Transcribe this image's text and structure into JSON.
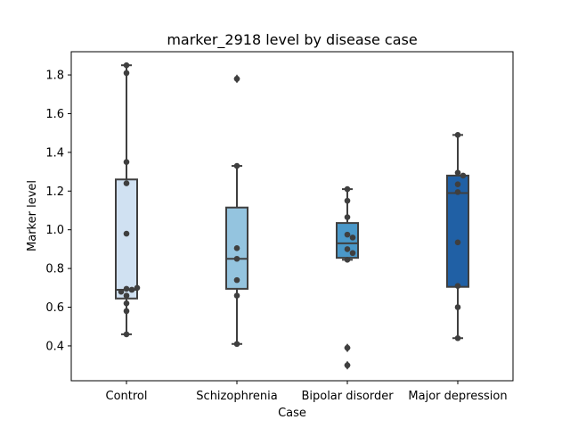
{
  "chart_data": {
    "type": "box",
    "title": "marker_2918 level by disease case",
    "xlabel": "Case",
    "ylabel": "Marker level",
    "categories": [
      "Control",
      "Schizophrenia",
      "Bipolar disorder",
      "Major depression"
    ],
    "ylim": [
      0.22,
      1.92
    ],
    "yticks": [
      "0.4",
      "0.6",
      "0.8",
      "1.0",
      "1.2",
      "1.4",
      "1.6",
      "1.8"
    ],
    "grid": false,
    "box_colors": [
      "#d0e1f2",
      "#94c4df",
      "#4a98c9",
      "#2060a5"
    ],
    "boxes": [
      {
        "category": "Control",
        "q1": 0.645,
        "median": 0.69,
        "q3": 1.26,
        "whisker_low": 0.46,
        "whisker_high": 1.85,
        "outliers": []
      },
      {
        "category": "Schizophrenia",
        "q1": 0.695,
        "median": 0.85,
        "q3": 1.115,
        "whisker_low": 0.41,
        "whisker_high": 1.33,
        "outliers": [
          1.78
        ]
      },
      {
        "category": "Bipolar disorder",
        "q1": 0.855,
        "median": 0.93,
        "q3": 1.035,
        "whisker_low": 0.845,
        "whisker_high": 1.21,
        "outliers": [
          0.39,
          0.3
        ]
      },
      {
        "category": "Major depression",
        "q1": 0.705,
        "median": 1.19,
        "q3": 1.28,
        "whisker_low": 0.44,
        "whisker_high": 1.49,
        "outliers": []
      }
    ],
    "points": [
      {
        "category": "Control",
        "values": [
          1.85,
          1.81,
          1.35,
          1.24,
          0.98,
          0.695,
          0.69,
          0.68,
          0.7,
          0.66,
          0.62,
          0.58,
          0.46
        ]
      },
      {
        "category": "Schizophrenia",
        "values": [
          1.78,
          1.33,
          0.905,
          0.85,
          0.74,
          0.66,
          0.41
        ]
      },
      {
        "category": "Bipolar disorder",
        "values": [
          1.21,
          1.15,
          1.065,
          0.975,
          0.96,
          0.9,
          0.88,
          0.845,
          0.39,
          0.3
        ]
      },
      {
        "category": "Major depression",
        "values": [
          1.49,
          1.295,
          1.28,
          1.235,
          1.195,
          0.935,
          0.71,
          0.6,
          0.44
        ]
      }
    ]
  }
}
